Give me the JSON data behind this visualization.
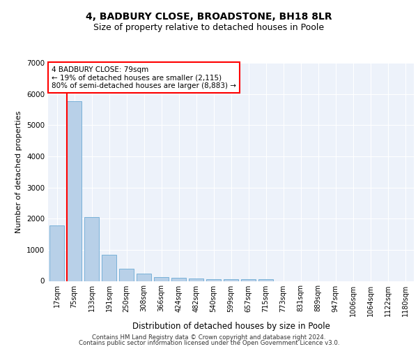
{
  "title1": "4, BADBURY CLOSE, BROADSTONE, BH18 8LR",
  "title2": "Size of property relative to detached houses in Poole",
  "xlabel": "Distribution of detached houses by size in Poole",
  "ylabel": "Number of detached properties",
  "categories": [
    "17sqm",
    "75sqm",
    "133sqm",
    "191sqm",
    "250sqm",
    "308sqm",
    "366sqm",
    "424sqm",
    "482sqm",
    "540sqm",
    "599sqm",
    "657sqm",
    "715sqm",
    "773sqm",
    "831sqm",
    "889sqm",
    "947sqm",
    "1006sqm",
    "1064sqm",
    "1122sqm",
    "1180sqm"
  ],
  "values": [
    1780,
    5760,
    2060,
    830,
    390,
    230,
    120,
    110,
    80,
    65,
    55,
    50,
    50,
    0,
    0,
    0,
    0,
    0,
    0,
    0,
    0
  ],
  "bar_color": "#b8d0e8",
  "bar_edgecolor": "#6aaad4",
  "annotation_line1": "4 BADBURY CLOSE: 79sqm",
  "annotation_line2": "← 19% of detached houses are smaller (2,115)",
  "annotation_line3": "80% of semi-detached houses are larger (8,883) →",
  "footer1": "Contains HM Land Registry data © Crown copyright and database right 2024.",
  "footer2": "Contains public sector information licensed under the Open Government Licence v3.0.",
  "ylim": [
    0,
    7000
  ],
  "yticks": [
    0,
    1000,
    2000,
    3000,
    4000,
    5000,
    6000,
    7000
  ],
  "bg_color": "#edf2fa",
  "grid_color": "#ffffff"
}
